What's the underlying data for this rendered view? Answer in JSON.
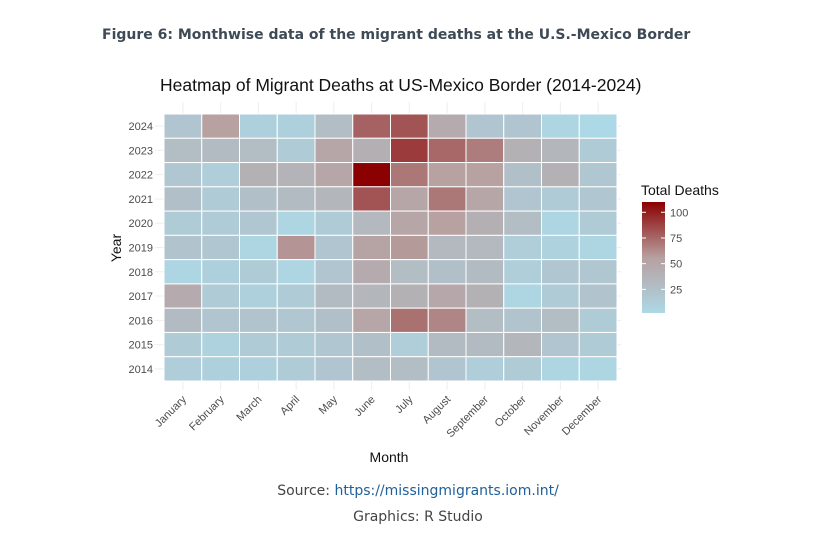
{
  "figure_caption": "Figure 6: Monthwise data of the migrant deaths at the U.S.-Mexico Border",
  "source": {
    "label": "Source:",
    "url_text": "https://missingmigrants.iom.int/"
  },
  "graphics_credit": "Graphics: R Studio",
  "colors": {
    "low": "#add8e6",
    "mid": "#b7a0a0",
    "high": "#8b0000",
    "grid": "#eeeeee",
    "tile_border": "#ffffff"
  },
  "chart_data": {
    "type": "heatmap",
    "title": "Heatmap of Migrant Deaths at US-Mexico Border (2014-2024)",
    "xlabel": "Month",
    "ylabel": "Year",
    "x_categories": [
      "January",
      "February",
      "March",
      "April",
      "May",
      "June",
      "July",
      "August",
      "September",
      "October",
      "November",
      "December"
    ],
    "y_categories": [
      "2024",
      "2023",
      "2022",
      "2021",
      "2020",
      "2019",
      "2018",
      "2017",
      "2016",
      "2015",
      "2014"
    ],
    "values": [
      [
        20,
        55,
        10,
        10,
        28,
        77,
        82,
        45,
        20,
        20,
        5,
        2
      ],
      [
        28,
        30,
        28,
        15,
        50,
        42,
        90,
        75,
        68,
        40,
        35,
        15
      ],
      [
        18,
        12,
        40,
        38,
        50,
        110,
        70,
        55,
        55,
        25,
        40,
        18
      ],
      [
        25,
        15,
        25,
        30,
        35,
        82,
        50,
        70,
        50,
        20,
        15,
        18
      ],
      [
        15,
        15,
        18,
        5,
        15,
        32,
        50,
        55,
        42,
        28,
        5,
        15
      ],
      [
        22,
        18,
        5,
        60,
        20,
        52,
        58,
        32,
        32,
        12,
        8,
        5
      ],
      [
        5,
        10,
        15,
        5,
        20,
        45,
        28,
        25,
        30,
        12,
        18,
        18
      ],
      [
        45,
        15,
        10,
        15,
        30,
        35,
        40,
        48,
        40,
        5,
        15,
        22
      ],
      [
        30,
        20,
        22,
        18,
        25,
        50,
        72,
        65,
        28,
        22,
        28,
        15
      ],
      [
        15,
        8,
        15,
        15,
        18,
        25,
        12,
        30,
        30,
        35,
        20,
        15
      ],
      [
        12,
        10,
        10,
        15,
        20,
        28,
        28,
        20,
        12,
        15,
        5,
        5
      ]
    ],
    "legend": {
      "title": "Total Deaths",
      "ticks": [
        25,
        50,
        75,
        100
      ],
      "range": [
        2,
        110
      ],
      "position": "right"
    }
  }
}
